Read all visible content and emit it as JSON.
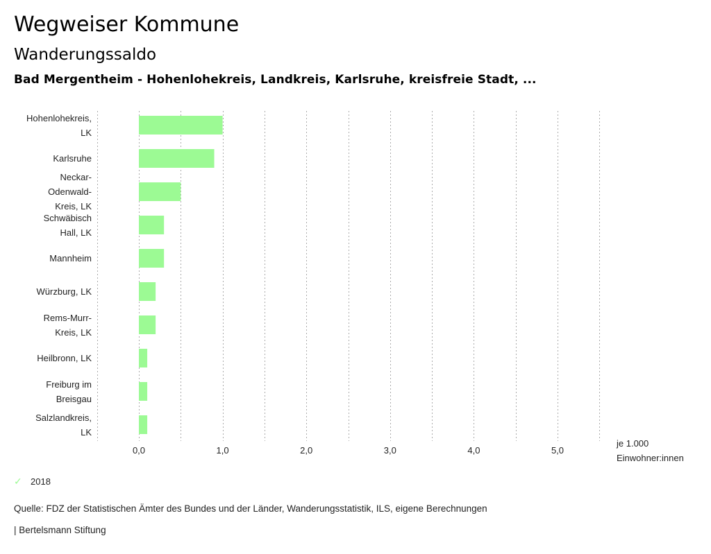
{
  "header": {
    "title": "Wegweiser Kommune",
    "subtitle": "Wanderungssaldo",
    "context": "Bad Mergentheim - Hohenlohekreis, Landkreis, Karlsruhe, kreisfreie Stadt, ..."
  },
  "chart_data": {
    "type": "bar",
    "orientation": "horizontal",
    "title": "Wanderungssaldo",
    "xlabel": "je 1.000 Einwohner:innen",
    "ylabel": "",
    "xlim": [
      -0.5,
      5.5
    ],
    "grid": true,
    "categories": [
      [
        "Hohenlohekreis,",
        "LK"
      ],
      [
        "Karlsruhe"
      ],
      [
        "Neckar-",
        "Odenwald-",
        "Kreis, LK"
      ],
      [
        "Schwäbisch",
        "Hall, LK"
      ],
      [
        "Mannheim"
      ],
      [
        "Würzburg, LK"
      ],
      [
        "Rems-Murr-",
        "Kreis, LK"
      ],
      [
        "Heilbronn, LK"
      ],
      [
        "Freiburg im",
        "Breisgau"
      ],
      [
        "Salzlandkreis,",
        "LK"
      ]
    ],
    "series": [
      {
        "name": "2018",
        "color": "#9cfa94",
        "values": [
          1.0,
          0.9,
          0.5,
          0.3,
          0.3,
          0.2,
          0.2,
          0.1,
          0.1,
          0.1
        ]
      }
    ],
    "x_ticks": [
      {
        "value": 0,
        "label": "0,0"
      },
      {
        "value": 1,
        "label": "1,0"
      },
      {
        "value": 2,
        "label": "2,0"
      },
      {
        "value": 3,
        "label": "3,0"
      },
      {
        "value": 4,
        "label": "4,0"
      },
      {
        "value": 5,
        "label": "5,0"
      }
    ],
    "gridlines": [
      -0.5,
      0,
      0.5,
      1,
      1.5,
      2,
      2.5,
      3,
      3.5,
      4,
      4.5,
      5,
      5.5
    ],
    "legend_position": "bottom-left",
    "unit_label": [
      "je 1.000",
      "Einwohner:innen"
    ]
  },
  "legend": {
    "items": [
      {
        "label": "2018",
        "icon": "check-icon",
        "color": "#9cfa94"
      }
    ]
  },
  "footer": {
    "source": "Quelle: FDZ der Statistischen Ämter des Bundes und der Länder, Wanderungsstatistik, ILS, eigene Berechnungen",
    "credit": "| Bertelsmann Stiftung"
  }
}
